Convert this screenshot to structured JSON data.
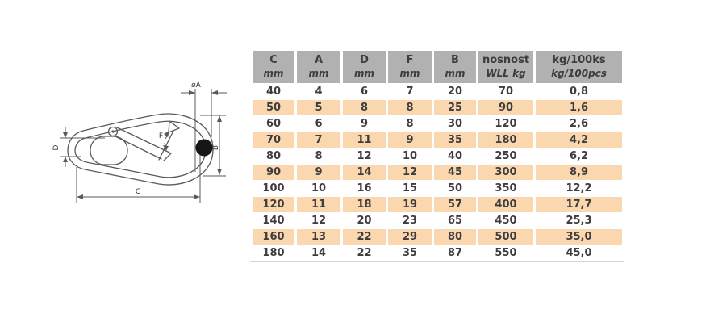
{
  "diagram": {
    "labels": {
      "diameter_a": "øA",
      "b": "B",
      "c": "C",
      "d": "D",
      "f": "F"
    },
    "line_color": "#5a5a5a",
    "dot_color": "#161616"
  },
  "table": {
    "header": [
      {
        "label": "C",
        "unit": "mm"
      },
      {
        "label": "A",
        "unit": "mm"
      },
      {
        "label": "D",
        "unit": "mm"
      },
      {
        "label": "F",
        "unit": "mm"
      },
      {
        "label": "B",
        "unit": "mm"
      },
      {
        "label": "nosnost",
        "unit": "WLL kg"
      },
      {
        "label": "kg/100ks",
        "unit": "kg/100pcs"
      }
    ],
    "rows": [
      [
        "40",
        "4",
        "6",
        "7",
        "20",
        "70",
        "0,8"
      ],
      [
        "50",
        "5",
        "8",
        "8",
        "25",
        "90",
        "1,6"
      ],
      [
        "60",
        "6",
        "9",
        "8",
        "30",
        "120",
        "2,6"
      ],
      [
        "70",
        "7",
        "11",
        "9",
        "35",
        "180",
        "4,2"
      ],
      [
        "80",
        "8",
        "12",
        "10",
        "40",
        "250",
        "6,2"
      ],
      [
        "90",
        "9",
        "14",
        "12",
        "45",
        "300",
        "8,9"
      ],
      [
        "100",
        "10",
        "16",
        "15",
        "50",
        "350",
        "12,2"
      ],
      [
        "120",
        "11",
        "18",
        "19",
        "57",
        "400",
        "17,7"
      ],
      [
        "140",
        "12",
        "20",
        "23",
        "65",
        "450",
        "25,3"
      ],
      [
        "160",
        "13",
        "22",
        "29",
        "80",
        "500",
        "35,0"
      ],
      [
        "180",
        "14",
        "22",
        "35",
        "87",
        "550",
        "45,0"
      ]
    ],
    "colors": {
      "header_bg": "#b1b1b1",
      "stripe_bg": "#fbd7b0",
      "text": "#3d3d3d"
    }
  }
}
